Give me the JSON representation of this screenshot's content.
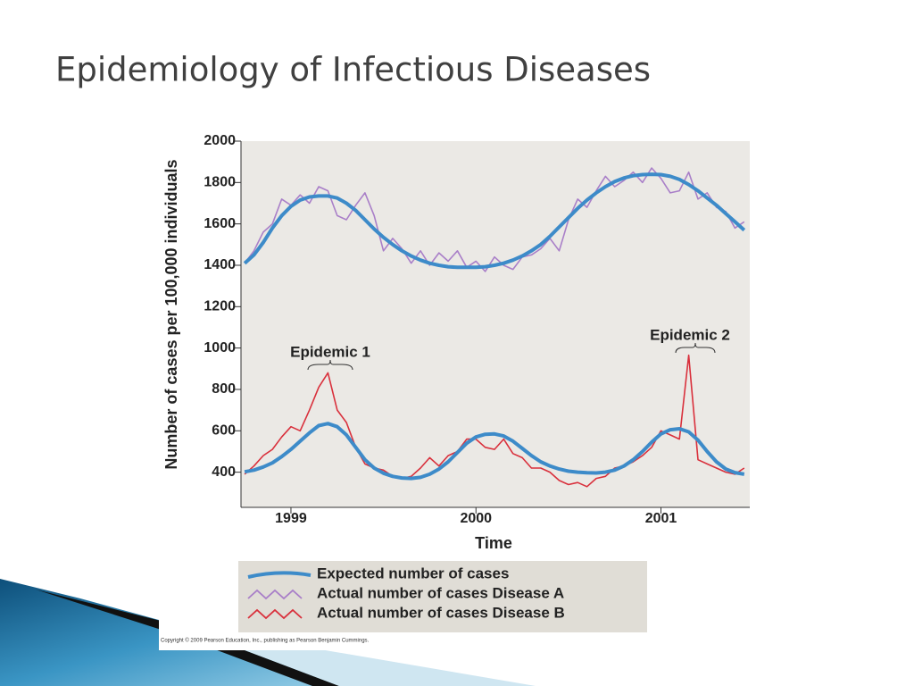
{
  "slide_title": "Epidemiology of Infectious Diseases",
  "copyright": "Copyright © 2009 Pearson Education, Inc., publishing as Pearson Benjamin Cummings.",
  "chart_data": {
    "type": "line",
    "xlabel": "Time",
    "ylabel": "Number of cases per 100,000 individuals",
    "xlim": [
      1998.73,
      2001.48
    ],
    "xticks": [
      1999,
      2000,
      2001
    ],
    "ylim": [
      230,
      2000
    ],
    "yticks": [
      400,
      600,
      800,
      1000,
      1200,
      1400,
      1600,
      1800,
      2000
    ],
    "annotations": [
      "Epidemic 1",
      "Epidemic 2"
    ],
    "x": [
      1998.75,
      1998.8,
      1998.85,
      1998.9,
      1998.95,
      1999.0,
      1999.05,
      1999.1,
      1999.15,
      1999.2,
      1999.25,
      1999.3,
      1999.35,
      1999.4,
      1999.45,
      1999.5,
      1999.55,
      1999.6,
      1999.65,
      1999.7,
      1999.75,
      1999.8,
      1999.85,
      1999.9,
      1999.95,
      2000.0,
      2000.05,
      2000.1,
      2000.15,
      2000.2,
      2000.25,
      2000.3,
      2000.35,
      2000.4,
      2000.45,
      2000.5,
      2000.55,
      2000.6,
      2000.65,
      2000.7,
      2000.75,
      2000.8,
      2000.85,
      2000.9,
      2000.95,
      2001.0,
      2001.05,
      2001.1,
      2001.15,
      2001.2,
      2001.25,
      2001.3,
      2001.35,
      2001.4,
      2001.45
    ],
    "series": [
      {
        "name": "Actual number of cases Disease A",
        "color": "#a97fc8",
        "style": "zigzag",
        "values": [
          1410,
          1470,
          1560,
          1600,
          1720,
          1690,
          1740,
          1700,
          1780,
          1760,
          1640,
          1620,
          1690,
          1750,
          1640,
          1470,
          1530,
          1480,
          1410,
          1470,
          1400,
          1460,
          1420,
          1470,
          1390,
          1420,
          1370,
          1440,
          1400,
          1380,
          1440,
          1450,
          1480,
          1530,
          1470,
          1620,
          1720,
          1680,
          1760,
          1830,
          1780,
          1810,
          1850,
          1800,
          1870,
          1820,
          1750,
          1760,
          1850,
          1720,
          1750,
          1680,
          1660,
          1580,
          1610
        ]
      },
      {
        "name": "Actual number of cases Disease B",
        "color": "#d9303c",
        "style": "zigzag",
        "values": [
          390,
          430,
          480,
          510,
          570,
          620,
          600,
          700,
          810,
          880,
          700,
          640,
          520,
          440,
          420,
          410,
          380,
          370,
          380,
          420,
          470,
          430,
          480,
          500,
          560,
          560,
          520,
          510,
          560,
          490,
          470,
          420,
          420,
          400,
          360,
          340,
          350,
          330,
          370,
          380,
          420,
          430,
          450,
          480,
          520,
          600,
          580,
          560,
          965,
          460,
          440,
          420,
          400,
          390,
          420
        ]
      },
      {
        "name": "Expected number of cases",
        "color": "#3d8bc9",
        "style": "smooth",
        "values": [
          1410,
          1450,
          1510,
          1580,
          1640,
          1685,
          1715,
          1730,
          1735,
          1735,
          1725,
          1700,
          1665,
          1620,
          1575,
          1535,
          1500,
          1470,
          1445,
          1425,
          1410,
          1400,
          1393,
          1390,
          1390,
          1390,
          1393,
          1400,
          1410,
          1425,
          1445,
          1470,
          1500,
          1540,
          1585,
          1630,
          1675,
          1715,
          1750,
          1780,
          1805,
          1822,
          1833,
          1838,
          1840,
          1838,
          1830,
          1815,
          1790,
          1760,
          1725,
          1690,
          1650,
          1610,
          1570
        ]
      },
      {
        "color": "#3d8bc9",
        "style": "smooth",
        "values": [
          402,
          410,
          425,
          445,
          475,
          510,
          550,
          590,
          625,
          635,
          620,
          580,
          520,
          460,
          420,
          395,
          380,
          372,
          370,
          375,
          390,
          415,
          450,
          495,
          540,
          570,
          583,
          585,
          575,
          550,
          515,
          480,
          450,
          430,
          415,
          405,
          400,
          397,
          396,
          400,
          410,
          430,
          460,
          500,
          545,
          585,
          605,
          610,
          595,
          555,
          500,
          450,
          415,
          398,
          390
        ]
      }
    ]
  }
}
